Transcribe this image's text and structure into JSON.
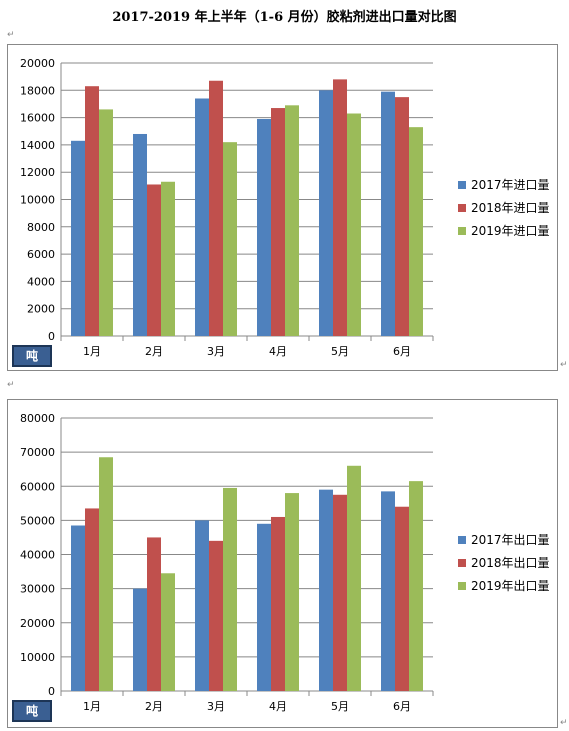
{
  "page": {
    "title": "2017-2019 年上半年（1-6 月份）胶粘剂进出口量对比图",
    "para_mark": "↵",
    "end_mark": "↵"
  },
  "colors": {
    "s2017": "#4f81bd",
    "s2018": "#c0504d",
    "s2019": "#9bbb59",
    "grid": "#888888",
    "badge": "#3a5f92"
  },
  "chart_data": [
    {
      "type": "bar",
      "unit_label": "吨",
      "categories": [
        "1月",
        "2月",
        "3月",
        "4月",
        "5月",
        "6月"
      ],
      "yticks": [
        "20000",
        "18000",
        "16000",
        "14000",
        "12000",
        "10000",
        "8000",
        "6000",
        "4000",
        "2000",
        "0"
      ],
      "ylim": [
        0,
        20000
      ],
      "grid": true,
      "legend_position": "right",
      "series": [
        {
          "name": "2017年进口量",
          "values": [
            14300,
            14800,
            17400,
            15900,
            18000,
            17900
          ]
        },
        {
          "name": "2018年进口量",
          "values": [
            18300,
            11100,
            18700,
            16700,
            18800,
            17500
          ]
        },
        {
          "name": "2019年进口量",
          "values": [
            16600,
            11300,
            14200,
            16900,
            16300,
            15300
          ]
        }
      ]
    },
    {
      "type": "bar",
      "unit_label": "吨",
      "categories": [
        "1月",
        "2月",
        "3月",
        "4月",
        "5月",
        "6月"
      ],
      "yticks": [
        "80000",
        "70000",
        "60000",
        "50000",
        "40000",
        "30000",
        "20000",
        "10000",
        "0"
      ],
      "ylim": [
        0,
        80000
      ],
      "grid": true,
      "legend_position": "right",
      "series": [
        {
          "name": "2017年出口量",
          "values": [
            48500,
            30000,
            50000,
            49000,
            59000,
            58500
          ]
        },
        {
          "name": "2018年出口量",
          "values": [
            53500,
            45000,
            44000,
            51000,
            57500,
            54000
          ]
        },
        {
          "name": "2019年出口量",
          "values": [
            68500,
            34500,
            59500,
            58000,
            66000,
            61500
          ]
        }
      ]
    }
  ]
}
